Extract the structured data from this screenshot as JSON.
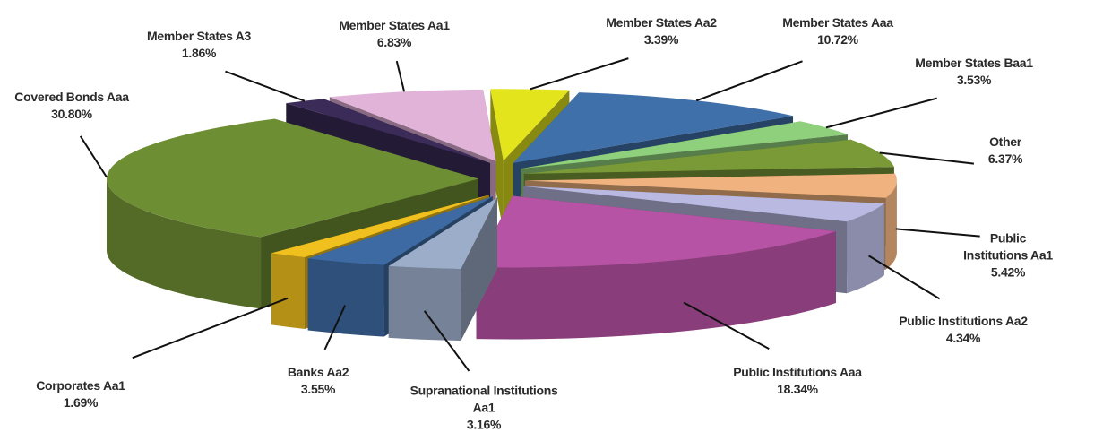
{
  "chart_data": {
    "type": "pie3d",
    "categories": [
      "Member States Aa2",
      "Member States Aaa",
      "Member States Baa1",
      "Other",
      "Public Institutions Aa1",
      "Public Institutions Aa2",
      "Public Institutions Aaa",
      "Supranational Institutions Aa1",
      "Banks Aa2",
      "Corporates Aa1",
      "Covered Bonds Aaa",
      "Member States A3",
      "Member States Aa1"
    ],
    "values": [
      3.39,
      10.72,
      3.53,
      6.37,
      5.42,
      4.34,
      18.34,
      3.16,
      3.55,
      1.69,
      30.8,
      1.86,
      6.83
    ],
    "value_labels": [
      "3.39%",
      "10.72%",
      "3.53%",
      "6.37%",
      "5.42%",
      "4.34%",
      "18.34%",
      "3.16%",
      "3.55%",
      "1.69%",
      "30.80%",
      "1.86%",
      "6.83%"
    ],
    "colors": [
      "#e3e41c",
      "#3f70aa",
      "#8fd07c",
      "#7a9a38",
      "#f0b27e",
      "#b9b9e2",
      "#b653a4",
      "#9cadc9",
      "#3d6aa2",
      "#f0c01e",
      "#6e8e34",
      "#3b2b58",
      "#e2b3d8"
    ]
  }
}
